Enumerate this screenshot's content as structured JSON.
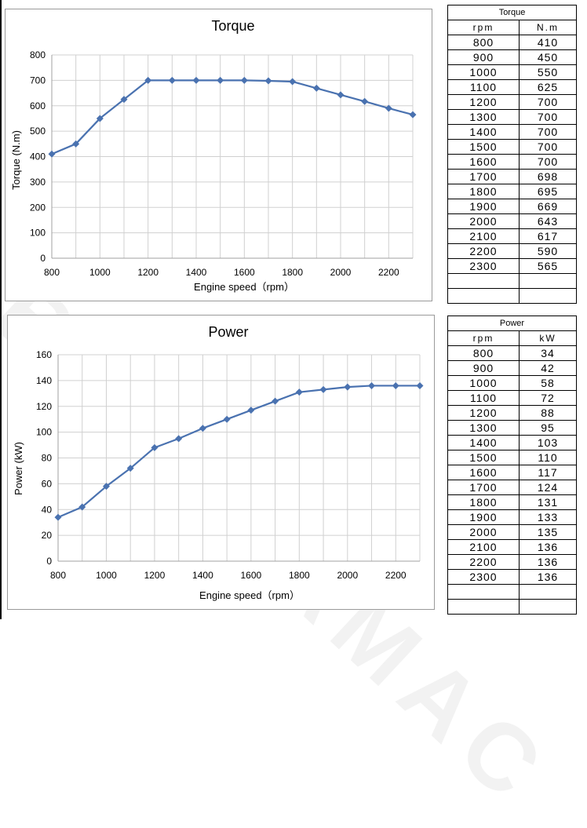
{
  "watermark": "BUTTLAMAC",
  "charts": [
    {
      "title": "Torque",
      "xlabel": "Engine speed（rpm）",
      "ylabel": "Torque (N.m)"
    },
    {
      "title": "Power",
      "xlabel": "Engine speed（rpm）",
      "ylabel": "Power (kW)"
    }
  ],
  "tables": [
    {
      "caption": "Torque",
      "col_rpm": "rpm",
      "col_value": "N.m",
      "rows": [
        [
          "800",
          "410"
        ],
        [
          "900",
          "450"
        ],
        [
          "1000",
          "550"
        ],
        [
          "1100",
          "625"
        ],
        [
          "1200",
          "700"
        ],
        [
          "1300",
          "700"
        ],
        [
          "1400",
          "700"
        ],
        [
          "1500",
          "700"
        ],
        [
          "1600",
          "700"
        ],
        [
          "1700",
          "698"
        ],
        [
          "1800",
          "695"
        ],
        [
          "1900",
          "669"
        ],
        [
          "2000",
          "643"
        ],
        [
          "2100",
          "617"
        ],
        [
          "2200",
          "590"
        ],
        [
          "2300",
          "565"
        ]
      ],
      "empty_rows": 2
    },
    {
      "caption": "Power",
      "col_rpm": "rpm",
      "col_value": "kW",
      "rows": [
        [
          "800",
          "34"
        ],
        [
          "900",
          "42"
        ],
        [
          "1000",
          "58"
        ],
        [
          "1100",
          "72"
        ],
        [
          "1200",
          "88"
        ],
        [
          "1300",
          "95"
        ],
        [
          "1400",
          "103"
        ],
        [
          "1500",
          "110"
        ],
        [
          "1600",
          "117"
        ],
        [
          "1700",
          "124"
        ],
        [
          "1800",
          "131"
        ],
        [
          "1900",
          "133"
        ],
        [
          "2000",
          "135"
        ],
        [
          "2100",
          "136"
        ],
        [
          "2200",
          "136"
        ],
        [
          "2300",
          "136"
        ]
      ],
      "empty_rows": 2
    }
  ],
  "chart_data": [
    {
      "type": "line",
      "title": "Torque",
      "xlabel": "Engine speed（rpm）",
      "ylabel": "Torque (N.m)",
      "x": [
        800,
        900,
        1000,
        1100,
        1200,
        1300,
        1400,
        1500,
        1600,
        1700,
        1800,
        1900,
        2000,
        2100,
        2200,
        2300
      ],
      "series": [
        {
          "values": [
            410,
            450,
            550,
            625,
            700,
            700,
            700,
            700,
            700,
            698,
            695,
            669,
            643,
            617,
            590,
            565
          ]
        }
      ],
      "xlim": [
        800,
        2300
      ],
      "ylim": [
        0,
        800
      ],
      "x_ticks": [
        800,
        1000,
        1200,
        1400,
        1600,
        1800,
        2000,
        2200
      ],
      "y_ticks": [
        0,
        100,
        200,
        300,
        400,
        500,
        600,
        700,
        800
      ],
      "grid": true,
      "legend": "none",
      "color": "#4a72b0"
    },
    {
      "type": "line",
      "title": "Power",
      "xlabel": "Engine speed（rpm）",
      "ylabel": "Power (kW)",
      "x": [
        800,
        900,
        1000,
        1100,
        1200,
        1300,
        1400,
        1500,
        1600,
        1700,
        1800,
        1900,
        2000,
        2100,
        2200,
        2300
      ],
      "series": [
        {
          "values": [
            34,
            42,
            58,
            72,
            88,
            95,
            103,
            110,
            117,
            124,
            131,
            133,
            135,
            136,
            136,
            136
          ]
        }
      ],
      "xlim": [
        800,
        2300
      ],
      "ylim": [
        0,
        160
      ],
      "x_ticks": [
        800,
        1000,
        1200,
        1400,
        1600,
        1800,
        2000,
        2200
      ],
      "y_ticks": [
        0,
        20,
        40,
        60,
        80,
        100,
        120,
        140,
        160
      ],
      "grid": true,
      "legend": "none",
      "color": "#4a72b0"
    }
  ]
}
